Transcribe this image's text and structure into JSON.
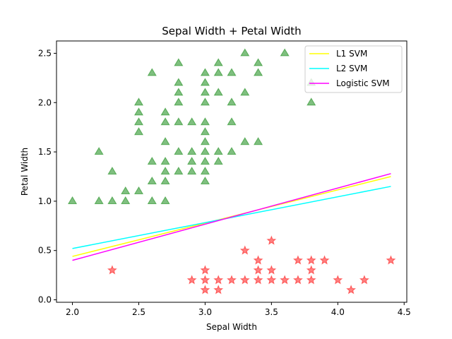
{
  "chart_data": {
    "type": "scatter",
    "title": "Sepal Width + Petal Width",
    "xlabel": "Sepal Width",
    "ylabel": "Petal Width",
    "xlim": [
      1.88,
      4.52
    ],
    "ylim": [
      -0.025,
      2.625
    ],
    "xticks": [
      "2.0",
      "2.5",
      "3.0",
      "3.5",
      "4.0",
      "4.5"
    ],
    "yticks": [
      "0.0",
      "0.5",
      "1.0",
      "1.5",
      "2.0",
      "2.5"
    ],
    "grid": false,
    "legend_position": "top-right",
    "scatter_series": [
      {
        "marker": "triangle",
        "color": "#008000",
        "points": [
          [
            2.0,
            1.0
          ],
          [
            2.2,
            1.0
          ],
          [
            2.2,
            1.5
          ],
          [
            2.3,
            1.0
          ],
          [
            2.3,
            1.3
          ],
          [
            2.4,
            1.0
          ],
          [
            2.4,
            1.1
          ],
          [
            2.5,
            1.1
          ],
          [
            2.5,
            1.7
          ],
          [
            2.5,
            1.8
          ],
          [
            2.5,
            1.9
          ],
          [
            2.5,
            2.0
          ],
          [
            2.6,
            1.0
          ],
          [
            2.6,
            1.2
          ],
          [
            2.6,
            1.4
          ],
          [
            2.6,
            2.3
          ],
          [
            2.7,
            1.0
          ],
          [
            2.7,
            1.2
          ],
          [
            2.7,
            1.3
          ],
          [
            2.7,
            1.4
          ],
          [
            2.7,
            1.6
          ],
          [
            2.7,
            1.8
          ],
          [
            2.7,
            1.9
          ],
          [
            2.8,
            1.3
          ],
          [
            2.8,
            1.5
          ],
          [
            2.8,
            1.8
          ],
          [
            2.8,
            2.0
          ],
          [
            2.8,
            2.1
          ],
          [
            2.8,
            2.2
          ],
          [
            2.8,
            2.4
          ],
          [
            2.9,
            1.3
          ],
          [
            2.9,
            1.4
          ],
          [
            2.9,
            1.5
          ],
          [
            2.9,
            1.8
          ],
          [
            3.0,
            1.2
          ],
          [
            3.0,
            1.3
          ],
          [
            3.0,
            1.4
          ],
          [
            3.0,
            1.5
          ],
          [
            3.0,
            1.6
          ],
          [
            3.0,
            1.7
          ],
          [
            3.0,
            1.8
          ],
          [
            3.0,
            2.0
          ],
          [
            3.0,
            2.1
          ],
          [
            3.0,
            2.2
          ],
          [
            3.0,
            2.3
          ],
          [
            3.1,
            1.4
          ],
          [
            3.1,
            1.5
          ],
          [
            3.1,
            2.1
          ],
          [
            3.1,
            2.3
          ],
          [
            3.1,
            2.4
          ],
          [
            3.2,
            1.5
          ],
          [
            3.2,
            1.8
          ],
          [
            3.2,
            2.0
          ],
          [
            3.2,
            2.3
          ],
          [
            3.3,
            1.6
          ],
          [
            3.3,
            2.1
          ],
          [
            3.3,
            2.5
          ],
          [
            3.4,
            1.6
          ],
          [
            3.4,
            2.3
          ],
          [
            3.4,
            2.4
          ],
          [
            3.6,
            2.5
          ],
          [
            3.8,
            2.0
          ],
          [
            3.8,
            2.2
          ]
        ]
      },
      {
        "marker": "star",
        "color": "#ff0000",
        "points": [
          [
            2.3,
            0.3
          ],
          [
            2.9,
            0.2
          ],
          [
            3.0,
            0.1
          ],
          [
            3.0,
            0.2
          ],
          [
            3.0,
            0.3
          ],
          [
            3.1,
            0.1
          ],
          [
            3.1,
            0.2
          ],
          [
            3.2,
            0.2
          ],
          [
            3.3,
            0.2
          ],
          [
            3.3,
            0.5
          ],
          [
            3.4,
            0.2
          ],
          [
            3.4,
            0.3
          ],
          [
            3.4,
            0.4
          ],
          [
            3.5,
            0.2
          ],
          [
            3.5,
            0.3
          ],
          [
            3.5,
            0.6
          ],
          [
            3.6,
            0.2
          ],
          [
            3.7,
            0.2
          ],
          [
            3.7,
            0.4
          ],
          [
            3.8,
            0.2
          ],
          [
            3.8,
            0.3
          ],
          [
            3.8,
            0.4
          ],
          [
            3.9,
            0.4
          ],
          [
            4.0,
            0.2
          ],
          [
            4.1,
            0.1
          ],
          [
            4.2,
            0.2
          ],
          [
            4.4,
            0.4
          ]
        ]
      }
    ],
    "lines": [
      {
        "name": "L1 SVM",
        "color": "#ffff00",
        "x": [
          2.0,
          4.4
        ],
        "y": [
          0.44,
          1.25
        ]
      },
      {
        "name": "L2 SVM",
        "color": "#00ffff",
        "x": [
          2.0,
          4.4
        ],
        "y": [
          0.52,
          1.15
        ]
      },
      {
        "name": "Logistic SVM",
        "color": "#ff00ff",
        "x": [
          2.0,
          4.4
        ],
        "y": [
          0.4,
          1.28
        ]
      }
    ]
  }
}
